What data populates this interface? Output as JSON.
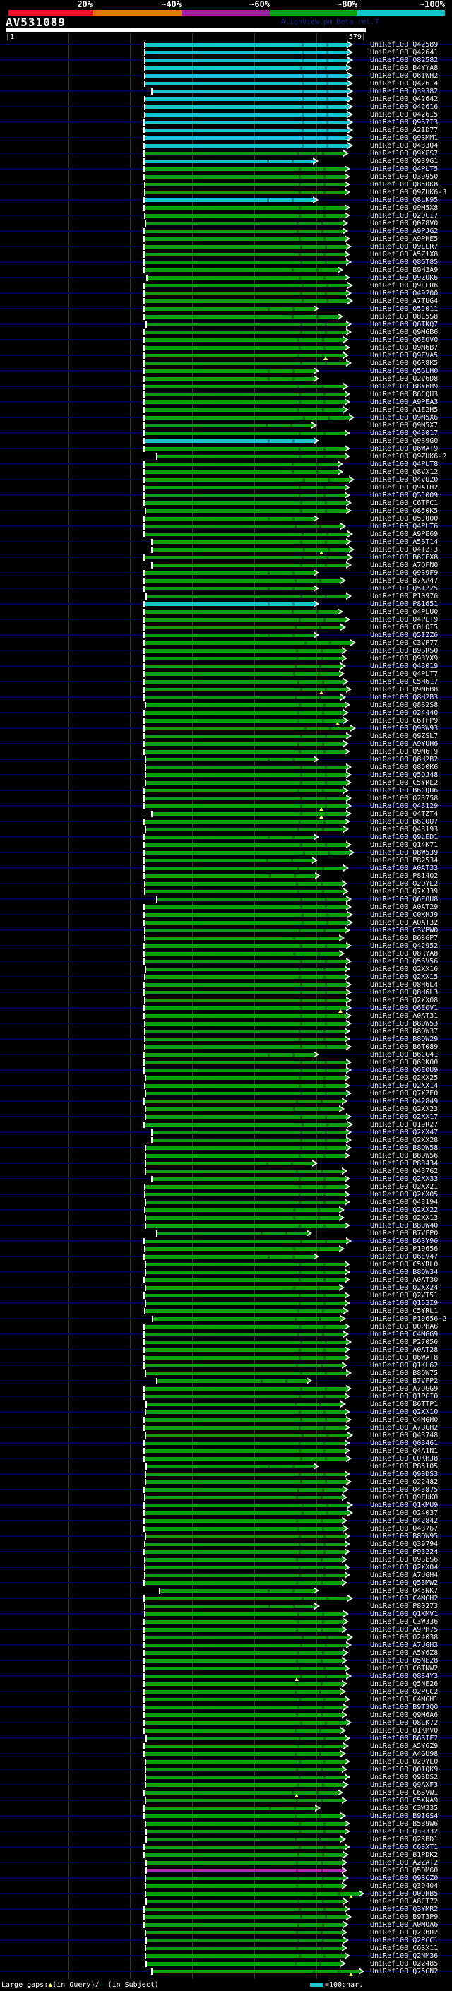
{
  "header": {
    "title": "AV531089",
    "watermark": "AlignView.pm Beta rel.7",
    "scale_labels": [
      "20%",
      "~40%",
      "~60%",
      "~80%",
      "~100%"
    ],
    "scale_colors": [
      "#ee1029",
      "#df7b00",
      "#a21ca2",
      "#0a9e0a",
      "#17c3cc"
    ],
    "ruler": {
      "left": "|1",
      "right": "579|"
    }
  },
  "footer": {
    "gaps_label": "Large gaps:",
    "query_marker": "▲",
    "query_text": "(in Query)/",
    "subject_marker": "—",
    "subject_text": " (in Subject)",
    "scale_text": "=100char."
  },
  "colors": {
    "background": "#000000",
    "leader_line": "#000050",
    "gridline": "#3b3b12",
    "label_text": "#ececec",
    "bar": {
      "c": "#17c3cc",
      "g": "#0a9e0a",
      "p": "#b428b4"
    },
    "notch": {
      "c": "#0b8a93",
      "g": "#056b05",
      "p": "#7a1a7a"
    },
    "gap_marker_yellow": "#ffff66"
  },
  "chart_data": {
    "type": "alignment_overview",
    "query": "AV531089",
    "query_length": 579,
    "x_axis": {
      "start_label": "1",
      "end_label": "579",
      "gridline_interval_chars": 100
    },
    "identity_legend": {
      "labels": [
        "20%",
        "~40%",
        "~60%",
        "~80%",
        "~100%"
      ],
      "colors": [
        "#ee1029",
        "#df7b00",
        "#a21ca2",
        "#0a9e0a",
        "#17c3cc"
      ]
    },
    "label_prefix": "UniRef100_",
    "rows_comment": "[id, colorKey c=~100% cyan | g=~80% green | p=~60% purple, bar_start_px, bar_end_px, optional yellow_gap_marker_px]",
    "rows": [
      [
        "Q42589",
        "c",
        205,
        492
      ],
      [
        "Q42641",
        "c",
        205,
        492
      ],
      [
        "O82582",
        "c",
        205,
        492
      ],
      [
        "B4YYA8",
        "c",
        205,
        490
      ],
      [
        "Q6IWH2",
        "c",
        205,
        492
      ],
      [
        "Q42614",
        "c",
        205,
        492
      ],
      [
        "Q39382",
        "c",
        215,
        492
      ],
      [
        "Q42642",
        "c",
        205,
        492
      ],
      [
        "Q42616",
        "c",
        205,
        492
      ],
      [
        "Q42615",
        "c",
        205,
        492
      ],
      [
        "Q9S7I3",
        "c",
        204,
        492
      ],
      [
        "A2ID77",
        "c",
        204,
        492
      ],
      [
        "Q9SMM1",
        "c",
        204,
        492
      ],
      [
        "Q43304",
        "c",
        204,
        492
      ],
      [
        "Q9XFS7",
        "g",
        204,
        486
      ],
      [
        "Q9S9G1",
        "c",
        204,
        443
      ],
      [
        "Q4PLT5",
        "g",
        204,
        488
      ],
      [
        "Q39950",
        "g",
        204,
        488
      ],
      [
        "Q850K8",
        "g",
        205,
        488
      ],
      [
        "Q9ZUK6-3",
        "g",
        205,
        488
      ],
      [
        "Q8LK95",
        "c",
        204,
        443
      ],
      [
        "Q9M5X8",
        "g",
        204,
        488
      ],
      [
        "Q2QCI7",
        "g",
        205,
        488
      ],
      [
        "Q0Z8V0",
        "g",
        206,
        485
      ],
      [
        "A9PJG2",
        "g",
        204,
        485
      ],
      [
        "A9PHE5",
        "g",
        204,
        488
      ],
      [
        "Q9LLR7",
        "g",
        204,
        490
      ],
      [
        "A5Z1X8",
        "g",
        204,
        488
      ],
      [
        "Q8GT85",
        "g",
        204,
        490
      ],
      [
        "B9H3A9",
        "g",
        204,
        478
      ],
      [
        "Q9ZUK6",
        "g",
        208,
        488
      ],
      [
        "Q9LLR6",
        "g",
        204,
        492
      ],
      [
        "O49200",
        "g",
        204,
        490
      ],
      [
        "A7TUG4",
        "g",
        204,
        492
      ],
      [
        "Q5J011",
        "g",
        204,
        444
      ],
      [
        "Q8L5S8",
        "g",
        204,
        478
      ],
      [
        "Q6TKQ7",
        "g",
        207,
        490
      ],
      [
        "Q9M6B6",
        "g",
        204,
        490
      ],
      [
        "Q6EOV0",
        "g",
        204,
        486
      ],
      [
        "Q9M6B7",
        "g",
        204,
        488
      ],
      [
        "Q9FVA5",
        "g",
        204,
        486,
        461
      ],
      [
        "Q6R8K5",
        "g",
        204,
        490
      ],
      [
        "Q5GLH0",
        "g",
        204,
        444
      ],
      [
        "Q2V6D8",
        "g",
        204,
        444
      ],
      [
        "B8Y6H9",
        "g",
        204,
        486
      ],
      [
        "B6CQU3",
        "g",
        204,
        488
      ],
      [
        "A9PEA3",
        "g",
        204,
        488
      ],
      [
        "A1E2H5",
        "g",
        204,
        486
      ],
      [
        "Q9M5X6",
        "g",
        204,
        494
      ],
      [
        "Q9M5X7",
        "g",
        204,
        441
      ],
      [
        "Q43017",
        "g",
        204,
        488
      ],
      [
        "Q9S9G0",
        "c",
        204,
        444
      ],
      [
        "Q6WAT9",
        "g",
        204,
        488
      ],
      [
        "Q9ZUK6-2",
        "g",
        222,
        488
      ],
      [
        "Q4PLT8",
        "g",
        204,
        478
      ],
      [
        "Q8VX12",
        "g",
        204,
        478
      ],
      [
        "Q4VUZ0",
        "g",
        204,
        494
      ],
      [
        "Q9ATH2",
        "g",
        204,
        488
      ],
      [
        "Q5J009",
        "g",
        204,
        488
      ],
      [
        "C6TFC1",
        "g",
        204,
        490
      ],
      [
        "Q850K5",
        "g",
        206,
        490
      ],
      [
        "Q5J000",
        "g",
        204,
        444
      ],
      [
        "Q4PLT6",
        "g",
        204,
        482
      ],
      [
        "A9PE69",
        "g",
        204,
        492
      ],
      [
        "A5BT14",
        "g",
        215,
        490
      ],
      [
        "Q4TZT3",
        "g",
        215,
        494,
        455
      ],
      [
        "B6CEX8",
        "g",
        204,
        492
      ],
      [
        "A7QFN0",
        "g",
        215,
        490
      ],
      [
        "Q9S9F9",
        "g",
        204,
        444
      ],
      [
        "B7XA47",
        "g",
        204,
        482
      ],
      [
        "Q5IZZ5",
        "g",
        204,
        444
      ],
      [
        "P10976",
        "g",
        207,
        490
      ],
      [
        "P81651",
        "c",
        204,
        444
      ],
      [
        "Q4PLU0",
        "g",
        204,
        478
      ],
      [
        "Q4PLT9",
        "g",
        204,
        488
      ],
      [
        "C0LOI5",
        "g",
        204,
        482
      ],
      [
        "Q5IZZ6",
        "g",
        204,
        444
      ],
      [
        "C3VP77",
        "g",
        204,
        496
      ],
      [
        "B9SRS0",
        "g",
        204,
        484
      ],
      [
        "Q93YX9",
        "g",
        204,
        484
      ],
      [
        "Q43019",
        "g",
        204,
        482
      ],
      [
        "Q4PLT7",
        "g",
        204,
        480
      ],
      [
        "C5H617",
        "g",
        204,
        486
      ],
      [
        "Q9M6B8",
        "g",
        204,
        490,
        455
      ],
      [
        "Q8H2B3",
        "g",
        204,
        482
      ],
      [
        "Q8S2S8",
        "g",
        206,
        488
      ],
      [
        "O24440",
        "g",
        204,
        486
      ],
      [
        "C6TFP9",
        "g",
        204,
        486,
        478
      ],
      [
        "Q9SW93",
        "g",
        204,
        496
      ],
      [
        "Q9ZSL7",
        "g",
        204,
        490
      ],
      [
        "A9YUH6",
        "g",
        204,
        486
      ],
      [
        "Q9M6T9",
        "g",
        204,
        488
      ],
      [
        "Q8H2B2",
        "g",
        206,
        444
      ],
      [
        "Q850K6",
        "g",
        206,
        490
      ],
      [
        "Q5QJ48",
        "g",
        206,
        490
      ],
      [
        "C5YRL2",
        "g",
        206,
        490
      ],
      [
        "B6CQU6",
        "g",
        204,
        486
      ],
      [
        "O23758",
        "g",
        204,
        490
      ],
      [
        "Q43129",
        "g",
        204,
        490,
        455
      ],
      [
        "Q4TZT4",
        "g",
        215,
        490,
        455
      ],
      [
        "B6CQU7",
        "g",
        204,
        488
      ],
      [
        "Q43193",
        "g",
        206,
        486
      ],
      [
        "Q9LED1",
        "g",
        204,
        444
      ],
      [
        "Q14K71",
        "g",
        204,
        490
      ],
      [
        "Q8W539",
        "g",
        204,
        494
      ],
      [
        "P82534",
        "g",
        204,
        442
      ],
      [
        "A0AT33",
        "g",
        204,
        486
      ],
      [
        "P81402",
        "g",
        204,
        446
      ],
      [
        "Q2QYL2",
        "g",
        205,
        484
      ],
      [
        "Q7XJ39",
        "g",
        205,
        486
      ],
      [
        "Q6EOU8",
        "g",
        222,
        490
      ],
      [
        "A0AT29",
        "g",
        204,
        490
      ],
      [
        "C0KHJ9",
        "g",
        204,
        492
      ],
      [
        "A0AT32",
        "g",
        204,
        492
      ],
      [
        "C3VPW0",
        "g",
        205,
        488
      ],
      [
        "B6SGP7",
        "g",
        205,
        480
      ],
      [
        "Q42952",
        "g",
        204,
        490
      ],
      [
        "Q8RYA8",
        "g",
        204,
        480
      ],
      [
        "Q56V56",
        "g",
        204,
        490
      ],
      [
        "Q2XX16",
        "g",
        206,
        488
      ],
      [
        "Q2XX15",
        "g",
        205,
        488
      ],
      [
        "Q8H6L4",
        "g",
        204,
        490
      ],
      [
        "Q8H6L3",
        "g",
        204,
        490
      ],
      [
        "Q2XX08",
        "g",
        205,
        490
      ],
      [
        "Q6EOV1",
        "g",
        204,
        490,
        482
      ],
      [
        "A0AT31",
        "g",
        204,
        490
      ],
      [
        "B8QW53",
        "g",
        205,
        490
      ],
      [
        "B8QW37",
        "g",
        205,
        488
      ],
      [
        "B8QW29",
        "g",
        205,
        488
      ],
      [
        "B6T089",
        "g",
        205,
        490
      ],
      [
        "B6CG41",
        "g",
        204,
        444
      ],
      [
        "Q6RK00",
        "g",
        204,
        490
      ],
      [
        "Q6EOU9",
        "g",
        204,
        490
      ],
      [
        "Q2XX25",
        "g",
        206,
        488
      ],
      [
        "Q2XX14",
        "g",
        205,
        488
      ],
      [
        "Q7XZE0",
        "g",
        206,
        490
      ],
      [
        "Q42849",
        "g",
        204,
        484
      ],
      [
        "Q2XX23",
        "g",
        206,
        480
      ],
      [
        "Q2XX17",
        "g",
        206,
        490
      ],
      [
        "Q19R27",
        "g",
        204,
        492
      ],
      [
        "Q2XX47",
        "g",
        215,
        490
      ],
      [
        "Q2XX28",
        "g",
        215,
        490
      ],
      [
        "B8QW58",
        "g",
        206,
        490
      ],
      [
        "B8QW56",
        "g",
        206,
        488
      ],
      [
        "P83434",
        "g",
        206,
        442
      ],
      [
        "Q43762",
        "g",
        206,
        484
      ],
      [
        "Q2XX33",
        "g",
        215,
        488
      ],
      [
        "Q2XX21",
        "g",
        205,
        488
      ],
      [
        "Q2XX05",
        "g",
        205,
        488
      ],
      [
        "Q43194",
        "g",
        206,
        488
      ],
      [
        "Q2XX22",
        "g",
        205,
        480
      ],
      [
        "Q2XX13",
        "g",
        206,
        480
      ],
      [
        "B8QW40",
        "g",
        206,
        488
      ],
      [
        "B7VFP0",
        "g",
        222,
        434
      ],
      [
        "B6SY96",
        "g",
        204,
        490
      ],
      [
        "P19656",
        "g",
        205,
        480
      ],
      [
        "Q6EV47",
        "g",
        204,
        444
      ],
      [
        "C5YRL0",
        "g",
        206,
        488
      ],
      [
        "B8QW34",
        "g",
        206,
        488
      ],
      [
        "A0AT30",
        "g",
        204,
        488
      ],
      [
        "Q2XX24",
        "g",
        206,
        480
      ],
      [
        "Q2VT51",
        "g",
        204,
        488
      ],
      [
        "Q153I9",
        "g",
        206,
        488
      ],
      [
        "C5YRL1",
        "g",
        205,
        486
      ],
      [
        "P19656-2",
        "g",
        216,
        482
      ],
      [
        "Q0PHA6",
        "g",
        204,
        488
      ],
      [
        "C4MGG9",
        "g",
        204,
        486
      ],
      [
        "P27056",
        "g",
        204,
        490
      ],
      [
        "A0AT28",
        "g",
        204,
        488
      ],
      [
        "Q6WAT8",
        "g",
        204,
        488
      ],
      [
        "Q1KL62",
        "g",
        204,
        484
      ],
      [
        "B8QW75",
        "g",
        206,
        490
      ],
      [
        "B7VFP2",
        "g",
        222,
        434
      ],
      [
        "A7UGG9",
        "g",
        204,
        490
      ],
      [
        "Q1PCI0",
        "g",
        204,
        488
      ],
      [
        "B6TTP1",
        "g",
        207,
        482
      ],
      [
        "Q2XX10",
        "g",
        206,
        488
      ],
      [
        "C4MGH0",
        "g",
        204,
        490
      ],
      [
        "A7UGH2",
        "g",
        204,
        488
      ],
      [
        "Q43748",
        "g",
        206,
        492
      ],
      [
        "Q03461",
        "g",
        204,
        488
      ],
      [
        "Q4A1N1",
        "g",
        204,
        488
      ],
      [
        "C0KHJ8",
        "g",
        204,
        490
      ],
      [
        "P85105",
        "g",
        207,
        444
      ],
      [
        "Q9SDS3",
        "g",
        206,
        488
      ],
      [
        "O22482",
        "g",
        206,
        490
      ],
      [
        "Q43875",
        "g",
        204,
        486
      ],
      [
        "Q9FUK0",
        "g",
        205,
        484
      ],
      [
        "Q1KMU9",
        "g",
        204,
        492
      ],
      [
        "O24037",
        "g",
        204,
        492
      ],
      [
        "Q42842",
        "g",
        204,
        484
      ],
      [
        "Q43767",
        "g",
        204,
        486
      ],
      [
        "B8QW95",
        "g",
        206,
        488
      ],
      [
        "Q39794",
        "g",
        205,
        488
      ],
      [
        "P93224",
        "g",
        204,
        488
      ],
      [
        "Q9SES6",
        "g",
        205,
        484
      ],
      [
        "Q2XX04",
        "g",
        205,
        488
      ],
      [
        "A7UGH4",
        "g",
        205,
        488
      ],
      [
        "Q53MW2",
        "g",
        204,
        484
      ],
      [
        "Q45NK7",
        "g",
        226,
        444
      ],
      [
        "C4MGH2",
        "g",
        204,
        492
      ],
      [
        "P80273",
        "g",
        205,
        445
      ],
      [
        "Q1KMV1",
        "g",
        205,
        486
      ],
      [
        "C3W336",
        "g",
        204,
        486
      ],
      [
        "A9PH75",
        "g",
        204,
        484
      ],
      [
        "O24038",
        "g",
        204,
        492
      ],
      [
        "A7UGH3",
        "g",
        204,
        490
      ],
      [
        "A5Y6Z8",
        "g",
        204,
        486
      ],
      [
        "Q5NE28",
        "g",
        204,
        484
      ],
      [
        "C6TNW2",
        "g",
        204,
        488
      ],
      [
        "Q8S4Y3",
        "g",
        204,
        490,
        420
      ],
      [
        "Q5NE26",
        "g",
        204,
        484
      ],
      [
        "Q2PCC2",
        "g",
        204,
        482
      ],
      [
        "C4MGH1",
        "g",
        204,
        488
      ],
      [
        "B9T3Q0",
        "g",
        204,
        486
      ],
      [
        "Q9M6A6",
        "g",
        204,
        484
      ],
      [
        "Q8LK72",
        "g",
        204,
        490
      ],
      [
        "Q1KMV0",
        "g",
        204,
        482
      ],
      [
        "B6SIF2",
        "g",
        207,
        488
      ],
      [
        "A5Y6Z9",
        "g",
        204,
        486
      ],
      [
        "A4GU98",
        "g",
        204,
        482
      ],
      [
        "Q2QYL0",
        "g",
        206,
        488
      ],
      [
        "Q0IQK9",
        "g",
        206,
        484
      ],
      [
        "Q9SDS2",
        "g",
        206,
        488
      ],
      [
        "Q9AXF3",
        "g",
        206,
        486
      ],
      [
        "C6SVW1",
        "g",
        204,
        478,
        420
      ],
      [
        "C5XNA9",
        "g",
        206,
        484
      ],
      [
        "C3W335",
        "g",
        204,
        446
      ],
      [
        "B9IGS4",
        "g",
        204,
        482
      ],
      [
        "B5B9W6",
        "g",
        206,
        488
      ],
      [
        "Q39332",
        "g",
        207,
        488
      ],
      [
        "Q2RBD1",
        "g",
        207,
        482
      ],
      [
        "C6SXT1",
        "g",
        204,
        488
      ],
      [
        "B1PDK2",
        "g",
        204,
        486
      ],
      [
        "A2ZAT2",
        "g",
        207,
        484
      ],
      [
        "Q5QM60",
        "p",
        207,
        484
      ],
      [
        "Q9SCZ0",
        "g",
        206,
        486
      ],
      [
        "Q39404",
        "g",
        206,
        484
      ],
      [
        "Q0DHB5",
        "g",
        206,
        508,
        497
      ],
      [
        "A8CT72",
        "g",
        207,
        486
      ],
      [
        "Q3YMR2",
        "g",
        204,
        488
      ],
      [
        "B9T3P9",
        "g",
        204,
        490
      ],
      [
        "A0MQA6",
        "g",
        204,
        486
      ],
      [
        "Q2RBD2",
        "g",
        206,
        484
      ],
      [
        "Q2PCC1",
        "g",
        207,
        486
      ],
      [
        "C6SX11",
        "g",
        206,
        484
      ],
      [
        "Q2NM36",
        "g",
        206,
        488
      ],
      [
        "O22485",
        "g",
        207,
        482
      ],
      [
        "Q75GN2",
        "g",
        215,
        508,
        497
      ]
    ]
  }
}
